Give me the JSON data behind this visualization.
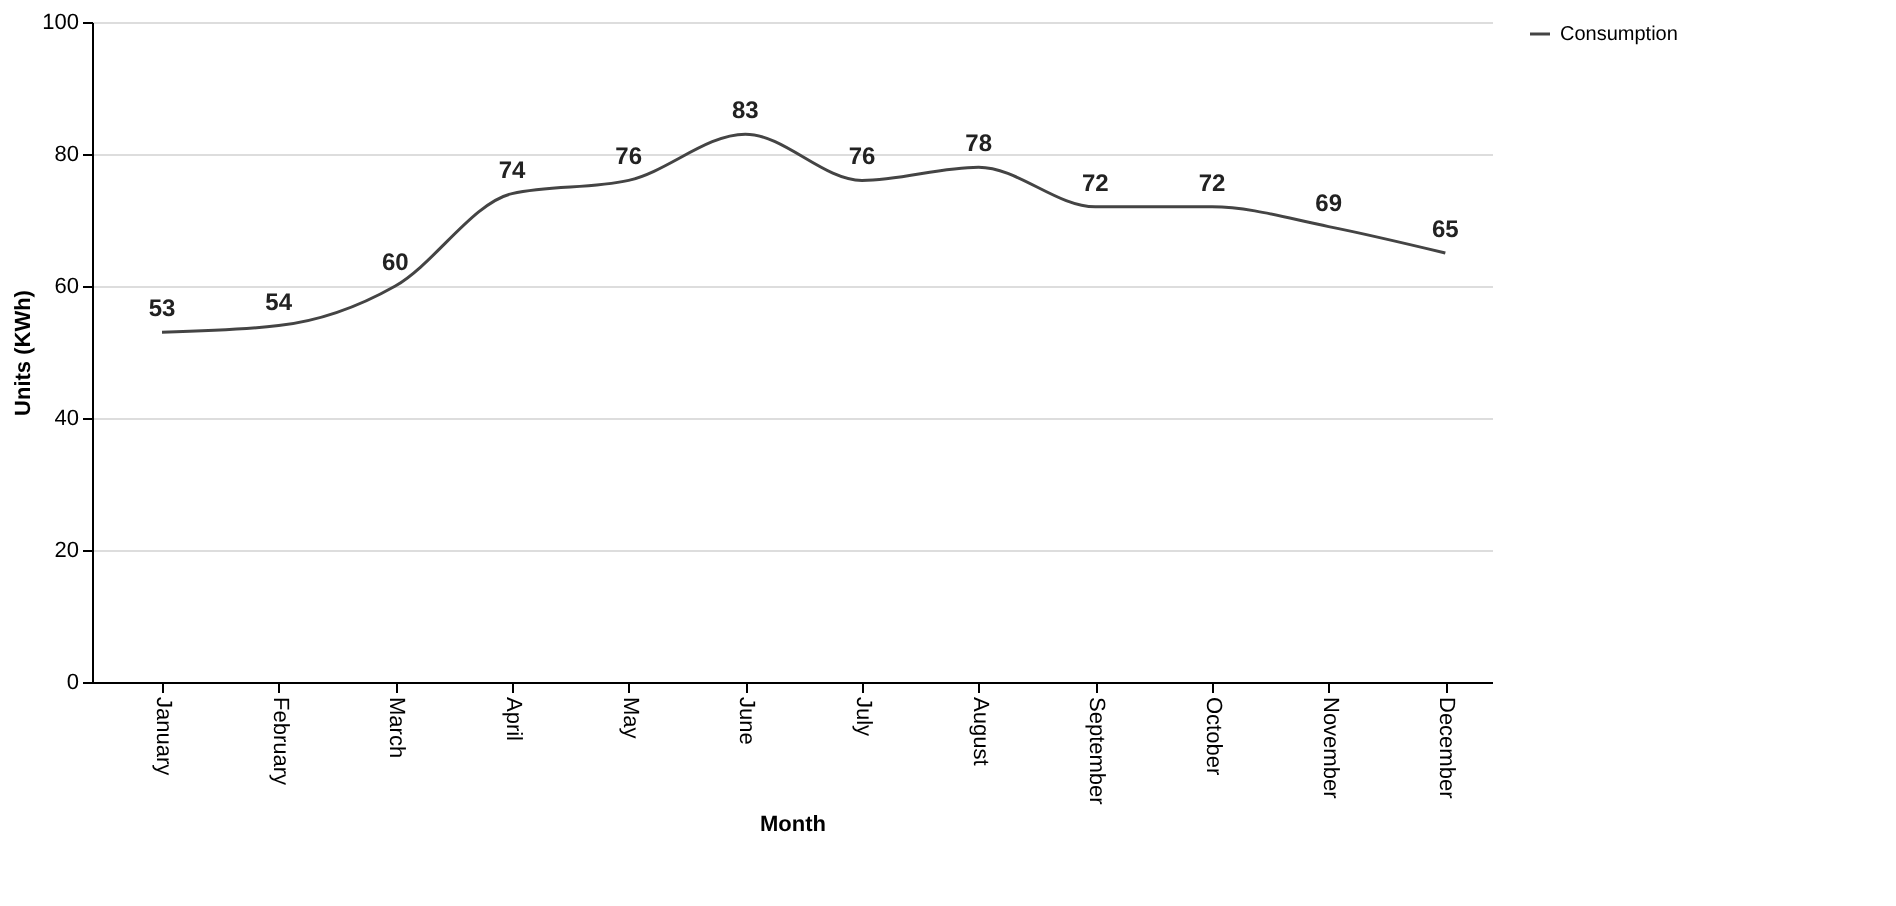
{
  "chart_data": {
    "type": "line",
    "xlabel": "Month",
    "ylabel": "Units (KWh)",
    "categories": [
      "January",
      "February",
      "March",
      "April",
      "May",
      "June",
      "July",
      "August",
      "September",
      "October",
      "November",
      "December"
    ],
    "series": [
      {
        "name": "Consumption",
        "color": "#444444",
        "values": [
          53,
          54,
          60,
          74,
          76,
          83,
          76,
          78,
          72,
          72,
          69,
          65
        ]
      }
    ],
    "ylim": [
      0,
      100
    ],
    "yticks": [
      0,
      20,
      40,
      60,
      80,
      100
    ],
    "grid": "y",
    "legend": "top right",
    "data_labels": true,
    "marker": "none",
    "line_style": "solid"
  }
}
